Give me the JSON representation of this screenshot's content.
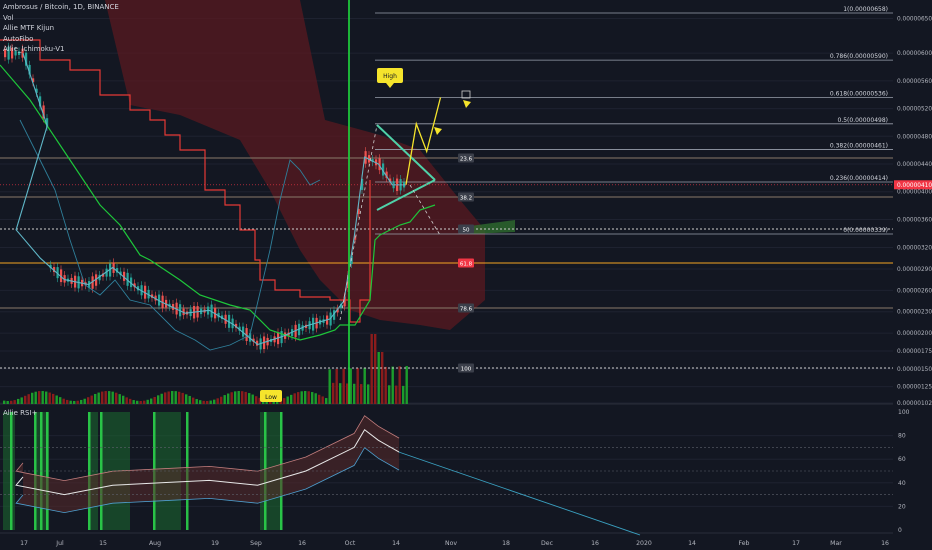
{
  "legend": {
    "title": "Ambrosus / Bitcoin, 1D, BINANCE",
    "indicators": [
      "Vol",
      "Allie MTF Kijun",
      "AutoFibo",
      "Allie_Ichimoku-V1"
    ]
  },
  "rsi_pane": {
    "label": "Allie RSI+"
  },
  "colors": {
    "background": "#131722",
    "price_line": "#5fb6c7",
    "kijun_red": "#e53935",
    "kijun_green": "#1ec63a",
    "cloud": "#5a1a20",
    "candle_up": "#26a69a",
    "candle_down": "#ef5350",
    "volume_green": "#1c9d2c",
    "volume_red": "#8b1c1c",
    "pattern": "#4fd1a8",
    "projection": "#f5e42c",
    "current_price_badge": "#f23645"
  },
  "chart_data": [
    {
      "type": "line",
      "title": "Ambrosus / Bitcoin, 1D, BINANCE",
      "y_axis_labels": [
        "0.00000650",
        "0.00000600",
        "0.00000560",
        "0.00000520",
        "0.00000480",
        "0.00000440",
        "0.00000400",
        "0.00000360",
        "0.00000320",
        "0.00000290",
        "0.00000260",
        "0.00000230",
        "0.00000200",
        "0.00000175",
        "0.00000150",
        "0.00000125",
        "0.00000102"
      ],
      "x_axis_labels": [
        "17",
        "Jul",
        "15",
        "Aug",
        "19",
        "Sep",
        "16",
        "Oct",
        "14",
        "Nov",
        "18",
        "Dec",
        "16",
        "2020",
        "14",
        "Feb",
        "17",
        "Mar",
        "16"
      ],
      "current_price": "0.00000410",
      "fib_levels": [
        {
          "label": "1(0.00000658)",
          "value": 6.58e-06
        },
        {
          "label": "0.786(0.00000590)",
          "value": 5.9e-06
        },
        {
          "label": "0.618(0.00000536)",
          "value": 5.36e-06
        },
        {
          "label": "0.5(0.00000498)",
          "value": 4.98e-06
        },
        {
          "label": "0.382(0.00000461)",
          "value": 4.61e-06
        },
        {
          "label": "0.236(0.00000414)",
          "value": 4.14e-06
        },
        {
          "label": "0(0.00000339)",
          "value": 3.39e-06
        }
      ],
      "marker_labels": {
        "high": "High",
        "low": "Low"
      },
      "tag_labels": [
        "23.6",
        "38.2",
        "50",
        "61.8",
        "78.6",
        "100"
      ],
      "price_series": [
        {
          "date": "Jun 17",
          "value": 6e-06
        },
        {
          "date": "Jun 24",
          "value": 4.95e-06
        },
        {
          "date": "Jul 1",
          "value": 3.45e-06
        },
        {
          "date": "Jul 8",
          "value": 3.05e-06
        },
        {
          "date": "Jul 15",
          "value": 2.75e-06
        },
        {
          "date": "Jul 22",
          "value": 2.68e-06
        },
        {
          "date": "Jul 29",
          "value": 2.92e-06
        },
        {
          "date": "Aug 5",
          "value": 2.63e-06
        },
        {
          "date": "Aug 12",
          "value": 2.44e-06
        },
        {
          "date": "Aug 19",
          "value": 2.28e-06
        },
        {
          "date": "Aug 26",
          "value": 2.32e-06
        },
        {
          "date": "Sep 2",
          "value": 2.12e-06
        },
        {
          "date": "Sep 9",
          "value": 1.84e-06
        },
        {
          "date": "Sep 16",
          "value": 1.95e-06
        },
        {
          "date": "Sep 23",
          "value": 2.1e-06
        },
        {
          "date": "Sep 30",
          "value": 2.2e-06
        },
        {
          "date": "Oct 4",
          "value": 2.45e-06
        },
        {
          "date": "Oct 7",
          "value": 3.35e-06
        },
        {
          "date": "Oct 10",
          "value": 4.5e-06
        },
        {
          "date": "Oct 14",
          "value": 4.4e-06
        },
        {
          "date": "Oct 18",
          "value": 4.1e-06
        },
        {
          "date": "Oct 22",
          "value": 4.1e-06
        }
      ],
      "projection": [
        {
          "date": "Oct 22",
          "value": 4.1e-06
        },
        {
          "date": "Oct 25",
          "value": 4.98e-06
        },
        {
          "date": "Oct 28",
          "value": 4.58e-06
        },
        {
          "date": "Nov 1",
          "value": 5.36e-06
        }
      ],
      "rsi": {
        "y_axis_labels": [
          "100",
          "80",
          "60",
          "40",
          "20",
          "0"
        ],
        "levels": [
          70,
          50,
          30
        ],
        "series": [
          {
            "date": "Jun 17",
            "value": 45
          },
          {
            "date": "Jul 1",
            "value": 38
          },
          {
            "date": "Jul 15",
            "value": 30
          },
          {
            "date": "Jul 29",
            "value": 38
          },
          {
            "date": "Aug 12",
            "value": 40
          },
          {
            "date": "Aug 26",
            "value": 42
          },
          {
            "date": "Sep 9",
            "value": 38
          },
          {
            "date": "Sep 23",
            "value": 50
          },
          {
            "date": "Oct 7",
            "value": 70
          },
          {
            "date": "Oct 10",
            "value": 85
          },
          {
            "date": "Oct 14",
            "value": 76
          },
          {
            "date": "Oct 20",
            "value": 66
          }
        ]
      }
    }
  ]
}
